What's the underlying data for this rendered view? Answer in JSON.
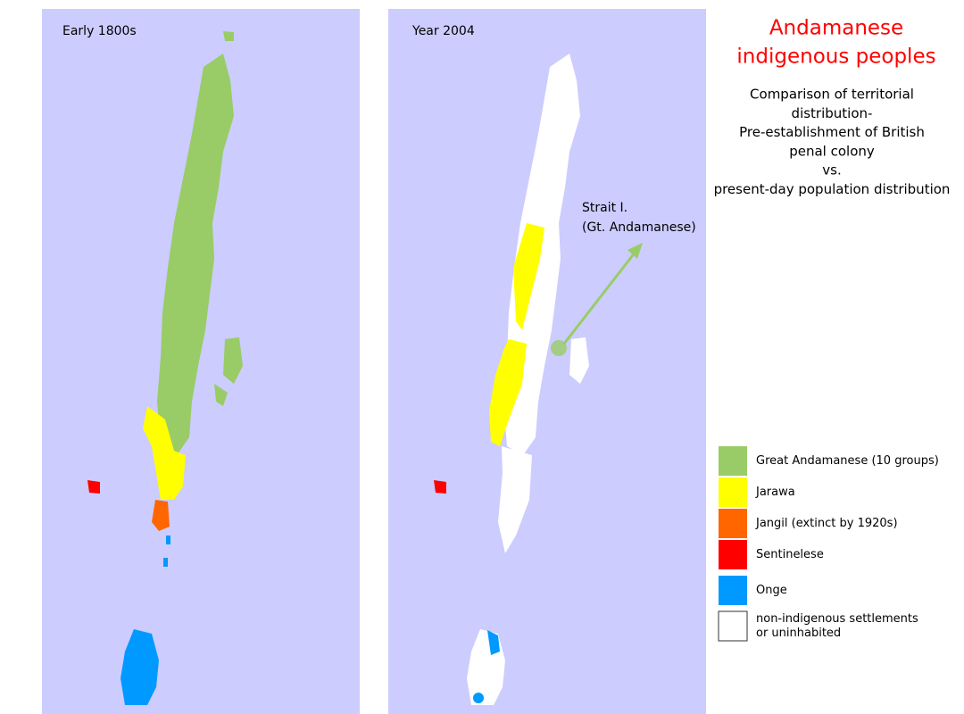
{
  "panels": [
    {
      "title": "Early 1800s"
    },
    {
      "title": "Year 2004"
    }
  ],
  "title": {
    "lines": [
      "Andamanese",
      "indigenous peoples"
    ],
    "color": "#ff0000"
  },
  "subtitle": {
    "lines": [
      "Comparison of territorial",
      "distribution-",
      "Pre-establishment of British",
      "penal colony",
      "vs.",
      "present-day population distribution"
    ]
  },
  "annotation": {
    "lines": [
      "Strait I.",
      "(Gt. Andamanese)"
    ],
    "color": "#99cc66"
  },
  "legend": {
    "items": [
      {
        "label": [
          "Great Andamanese (10 groups)"
        ],
        "color": "#99cc66"
      },
      {
        "label": [
          "Jarawa"
        ],
        "color": "#ffff00"
      },
      {
        "label": [
          "Jangil (extinct by 1920s)"
        ],
        "color": "#ff6600"
      },
      {
        "label": [
          "Sentinelese"
        ],
        "color": "#ff0000"
      },
      {
        "label": [
          "Onge"
        ],
        "color": "#0099ff"
      },
      {
        "label": [
          "non-indigenous settlements",
          "or uninhabited"
        ],
        "color": "#ffffff"
      }
    ]
  }
}
